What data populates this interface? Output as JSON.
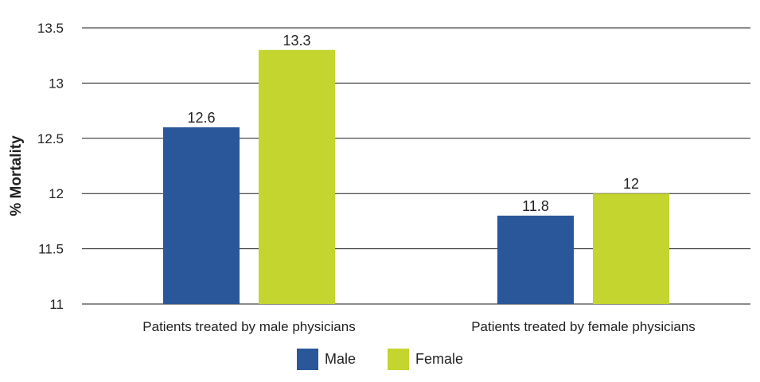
{
  "chart_data": {
    "type": "bar",
    "categories": [
      "Patients treated by male physicians",
      "Patients treated by female physicians"
    ],
    "series": [
      {
        "name": "Male",
        "values": [
          12.6,
          11.8
        ],
        "color": "#2a579a"
      },
      {
        "name": "Female",
        "values": [
          13.3,
          12
        ],
        "color": "#c3d52e"
      }
    ],
    "data_labels": [
      [
        "12.6",
        "11.8"
      ],
      [
        "13.3",
        "12"
      ]
    ],
    "ylabel": "% Mortality",
    "xlabel": "",
    "ylim": [
      11,
      13.5
    ],
    "yticks": [
      "11",
      "11.5",
      "12",
      "12.5",
      "13",
      "13.5"
    ],
    "grid": true,
    "legend_position": "bottom-center"
  }
}
